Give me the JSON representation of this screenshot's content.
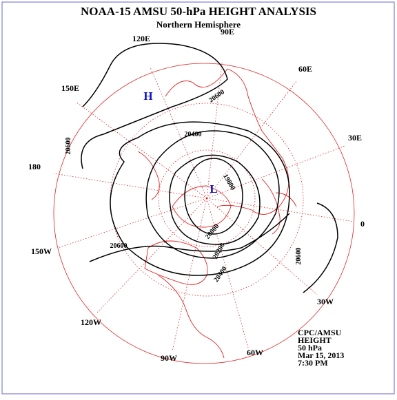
{
  "header": {
    "title": "NOAA-15 AMSU 50-hPa HEIGHT ANALYSIS",
    "subtitle": "Northern Hemisphere"
  },
  "longitude_labels": [
    "120E",
    "90E",
    "60E",
    "30E",
    "0",
    "30W",
    "60W",
    "90W",
    "120W",
    "150W",
    "180",
    "150E"
  ],
  "contour_labels": [
    "20600",
    "20600",
    "20400",
    "19800",
    "20000",
    "20200",
    "20400",
    "20600",
    "20600"
  ],
  "pressure_centers": [
    "H",
    "L"
  ],
  "info": [
    "CPC/AMSU",
    "HEIGHT",
    "50 hPa",
    "Mar 15, 2013",
    "7:30 PM"
  ]
}
